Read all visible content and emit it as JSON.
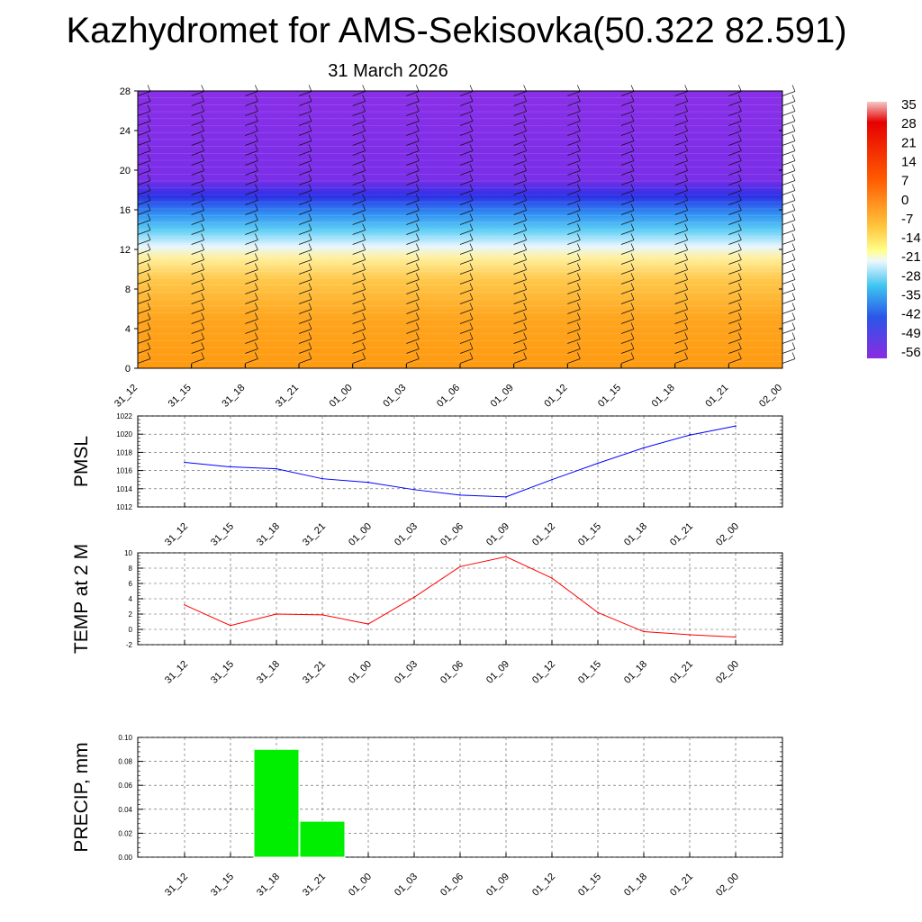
{
  "title": "Kazhydromet for AMS-Sekisovka(50.322 82.591)",
  "subtitle": "31 March 2026",
  "time_labels": [
    "31_12",
    "31_15",
    "31_18",
    "31_21",
    "01_00",
    "01_03",
    "01_06",
    "01_09",
    "01_12",
    "01_15",
    "01_18",
    "01_21",
    "02_00"
  ],
  "colorbar": {
    "labels": [
      "35",
      "28",
      "21",
      "14",
      "7",
      "0",
      "-7",
      "-14",
      "-21",
      "-28",
      "-35",
      "-42",
      "-49",
      "-56"
    ]
  },
  "colors": {
    "pmsl_line": "#0000ff",
    "temp_line": "#ff0000",
    "precip_bar": "#00ee00"
  },
  "chart_data": [
    {
      "type": "heatmap",
      "name": "cross-section",
      "x": [
        "31_12",
        "31_15",
        "31_18",
        "31_21",
        "01_00",
        "01_03",
        "01_06",
        "01_09",
        "01_12",
        "01_15",
        "01_18",
        "01_21",
        "02_00"
      ],
      "y_ticks": [
        0,
        4,
        8,
        12,
        16,
        20,
        24,
        28
      ],
      "ylim": [
        0,
        28
      ],
      "value_unit": "temperature",
      "level_temperature": [
        {
          "level": 0,
          "value": 10
        },
        {
          "level": 6,
          "value": 3
        },
        {
          "level": 11,
          "value": -8
        },
        {
          "level": 13,
          "value": -18
        },
        {
          "level": 15,
          "value": -38
        },
        {
          "level": 18,
          "value": -55
        },
        {
          "level": 28,
          "value": -56
        }
      ]
    },
    {
      "type": "line",
      "name": "pmsl",
      "ylabel": "PMSL",
      "x": [
        "31_12",
        "31_15",
        "31_18",
        "31_21",
        "01_00",
        "01_03",
        "01_06",
        "01_09",
        "01_12",
        "01_15",
        "01_18",
        "01_21",
        "02_00"
      ],
      "values": [
        1016.9,
        1016.4,
        1016.2,
        1015.1,
        1014.7,
        1013.9,
        1013.3,
        1013.1,
        1015.0,
        1016.8,
        1018.5,
        1019.9,
        1020.9
      ],
      "ylim": [
        1012,
        1022
      ],
      "y_ticks": [
        1012,
        1014,
        1016,
        1018,
        1020,
        1022
      ]
    },
    {
      "type": "line",
      "name": "temp",
      "ylabel": "TEMP at 2 M",
      "x": [
        "31_12",
        "31_15",
        "31_18",
        "31_21",
        "01_00",
        "01_03",
        "01_06",
        "01_09",
        "01_12",
        "01_15",
        "01_18",
        "01_21",
        "02_00"
      ],
      "values": [
        3.2,
        0.5,
        2.0,
        1.9,
        0.7,
        4.2,
        8.2,
        9.5,
        6.7,
        2.2,
        -0.3,
        -0.7,
        -1.0
      ],
      "ylim": [
        -2,
        10
      ],
      "y_ticks": [
        -2,
        0,
        2,
        4,
        6,
        8,
        10
      ]
    },
    {
      "type": "bar",
      "name": "precip",
      "ylabel": "PRECIP, mm",
      "categories": [
        "31_12",
        "31_15",
        "31_18",
        "31_21",
        "01_00",
        "01_03",
        "01_06",
        "01_09",
        "01_12",
        "01_15",
        "01_18",
        "01_21",
        "02_00"
      ],
      "values": [
        0,
        0,
        0.09,
        0.03,
        0,
        0,
        0,
        0,
        0,
        0,
        0,
        0,
        0
      ],
      "ylim": [
        0,
        0.1
      ],
      "y_tick_labels": [
        "0.00",
        "0.02",
        "0.04",
        "0.06",
        "0.08",
        "0.10"
      ]
    }
  ]
}
